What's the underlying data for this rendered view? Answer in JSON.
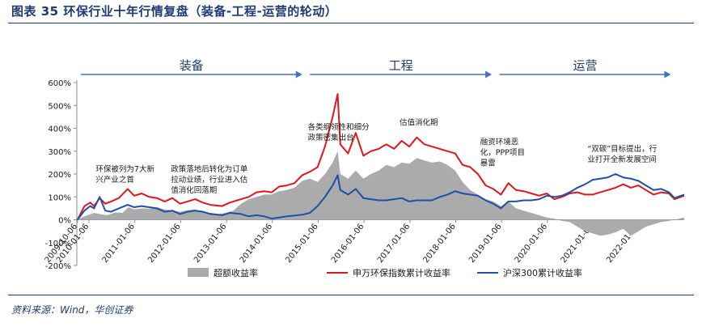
{
  "title": "图表 35   环保行业十年行情复盘（装备-工程-运营的轮动）",
  "source": "资料来源：Wind，华创证券",
  "colors": {
    "excess": "#ababab",
    "index": "#e0161d",
    "hs300": "#1f4fa8",
    "phase_arrow": "#4472c4",
    "phase_text": "#1f3b73",
    "text": "#1a1a1a",
    "axis": "#8c8c8c"
  },
  "phases": [
    {
      "label": "装备",
      "start": "2009-11-01",
      "end": "2014-09-01"
    },
    {
      "label": "工程",
      "start": "2014-11-01",
      "end": "2018-10-20"
    },
    {
      "label": "运营",
      "start": "2018-12-20",
      "end": "2022-09-15"
    }
  ],
  "annotations": [
    {
      "lines": [
        "环保被列为7大新",
        "兴产业之首"
      ],
      "date": "2010-03-01",
      "y": 210
    },
    {
      "lines": [
        "政策落地后转化为订单",
        "拉动业绩，行业进入估",
        "值消化回落期"
      ],
      "date": "2011-10-20",
      "y": 210
    },
    {
      "lines": [
        "各类纲领性和细分",
        "政策密集出台"
      ],
      "date": "2014-10-15",
      "y": 395
    },
    {
      "lines": [
        "估值消化期"
      ],
      "date": "2016-10-15",
      "y": 415
    },
    {
      "lines": [
        "融资环境恶",
        "化，PPP项目",
        "暴雷"
      ],
      "date": "2018-07-20",
      "y": 330
    },
    {
      "lines": [
        "“双碳”目标提出，行",
        "业打开全新发展空间"
      ],
      "date": "2020-11-20",
      "y": 300
    }
  ],
  "chart_data": {
    "type": "line",
    "title": "",
    "xlabel": "",
    "ylabel": "",
    "ylim": [
      -200,
      600
    ],
    "ytick_step": 100,
    "yticks_format": "percent",
    "xlim": [
      "2009-10-01",
      "2022-12-31"
    ],
    "xtick_labels": [
      "2009-10-06",
      "2010-01-06",
      "2011-01-06",
      "2012-01-06",
      "2013-01-06",
      "2014-01-06",
      "2015-01-06",
      "2016-01-06",
      "2017-01-06",
      "2018-01-06",
      "2019-01-06",
      "2020-01-06",
      "2021-01-06",
      "2022-01-06"
    ],
    "legend_position": "bottom",
    "series": [
      {
        "name": "超额收益率",
        "style": "area",
        "points": [
          [
            "2009-10-06",
            0
          ],
          [
            "2009-12-01",
            15
          ],
          [
            "2010-02-15",
            30
          ],
          [
            "2010-04-01",
            25
          ],
          [
            "2010-06-01",
            20
          ],
          [
            "2010-08-01",
            32
          ],
          [
            "2010-10-01",
            30
          ],
          [
            "2010-11-15",
            55
          ],
          [
            "2011-01-01",
            45
          ],
          [
            "2011-03-01",
            50
          ],
          [
            "2011-05-01",
            48
          ],
          [
            "2011-07-01",
            55
          ],
          [
            "2011-09-01",
            45
          ],
          [
            "2011-11-01",
            40
          ],
          [
            "2012-01-01",
            35
          ],
          [
            "2012-03-01",
            42
          ],
          [
            "2012-05-01",
            45
          ],
          [
            "2012-07-01",
            35
          ],
          [
            "2012-09-01",
            30
          ],
          [
            "2012-11-01",
            25
          ],
          [
            "2013-01-01",
            30
          ],
          [
            "2013-03-01",
            40
          ],
          [
            "2013-05-01",
            70
          ],
          [
            "2013-07-01",
            90
          ],
          [
            "2013-09-01",
            100
          ],
          [
            "2013-11-01",
            110
          ],
          [
            "2014-01-01",
            110
          ],
          [
            "2014-03-01",
            125
          ],
          [
            "2014-05-01",
            130
          ],
          [
            "2014-07-01",
            140
          ],
          [
            "2014-09-01",
            170
          ],
          [
            "2014-11-01",
            180
          ],
          [
            "2015-01-01",
            165
          ],
          [
            "2015-03-01",
            200
          ],
          [
            "2015-05-01",
            250
          ],
          [
            "2015-06-10",
            300
          ],
          [
            "2015-07-01",
            200
          ],
          [
            "2015-09-01",
            180
          ],
          [
            "2015-11-01",
            215
          ],
          [
            "2016-01-01",
            180
          ],
          [
            "2016-03-01",
            200
          ],
          [
            "2016-05-01",
            215
          ],
          [
            "2016-07-01",
            240
          ],
          [
            "2016-09-01",
            230
          ],
          [
            "2016-11-01",
            250
          ],
          [
            "2017-01-01",
            245
          ],
          [
            "2017-03-01",
            270
          ],
          [
            "2017-05-01",
            260
          ],
          [
            "2017-07-01",
            250
          ],
          [
            "2017-09-01",
            255
          ],
          [
            "2017-11-01",
            240
          ],
          [
            "2018-01-01",
            215
          ],
          [
            "2018-03-01",
            165
          ],
          [
            "2018-05-01",
            130
          ],
          [
            "2018-07-01",
            110
          ],
          [
            "2018-09-01",
            90
          ],
          [
            "2018-11-01",
            80
          ],
          [
            "2019-01-01",
            60
          ],
          [
            "2019-03-01",
            80
          ],
          [
            "2019-05-01",
            50
          ],
          [
            "2019-07-01",
            40
          ],
          [
            "2019-09-01",
            30
          ],
          [
            "2019-11-01",
            20
          ],
          [
            "2020-01-01",
            10
          ],
          [
            "2020-03-01",
            5
          ],
          [
            "2020-05-01",
            -5
          ],
          [
            "2020-07-01",
            -10
          ],
          [
            "2020-09-01",
            -30
          ],
          [
            "2020-11-01",
            -50
          ],
          [
            "2021-01-01",
            -60
          ],
          [
            "2021-03-01",
            -70
          ],
          [
            "2021-05-01",
            -65
          ],
          [
            "2021-07-01",
            -55
          ],
          [
            "2021-09-01",
            -40
          ],
          [
            "2021-11-01",
            -70
          ],
          [
            "2022-01-01",
            -50
          ],
          [
            "2022-03-01",
            -30
          ],
          [
            "2022-05-01",
            -20
          ],
          [
            "2022-07-01",
            -10
          ],
          [
            "2022-09-01",
            -5
          ],
          [
            "2022-12-31",
            10
          ]
        ]
      },
      {
        "name": "申万环保指数累计收益率",
        "style": "line",
        "points": [
          [
            "2009-10-06",
            0
          ],
          [
            "2009-12-01",
            60
          ],
          [
            "2010-01-15",
            75
          ],
          [
            "2010-02-15",
            60
          ],
          [
            "2010-04-01",
            95
          ],
          [
            "2010-05-15",
            70
          ],
          [
            "2010-07-01",
            80
          ],
          [
            "2010-09-01",
            95
          ],
          [
            "2010-11-10",
            135
          ],
          [
            "2011-01-01",
            105
          ],
          [
            "2011-03-01",
            115
          ],
          [
            "2011-05-01",
            100
          ],
          [
            "2011-07-01",
            95
          ],
          [
            "2011-09-01",
            80
          ],
          [
            "2011-11-01",
            95
          ],
          [
            "2012-01-01",
            70
          ],
          [
            "2012-03-01",
            80
          ],
          [
            "2012-05-01",
            90
          ],
          [
            "2012-07-01",
            75
          ],
          [
            "2012-09-01",
            65
          ],
          [
            "2012-12-01",
            60
          ],
          [
            "2013-02-01",
            75
          ],
          [
            "2013-05-01",
            90
          ],
          [
            "2013-07-01",
            100
          ],
          [
            "2013-09-01",
            120
          ],
          [
            "2013-11-01",
            125
          ],
          [
            "2014-01-01",
            120
          ],
          [
            "2014-03-01",
            145
          ],
          [
            "2014-05-01",
            150
          ],
          [
            "2014-07-01",
            160
          ],
          [
            "2014-09-01",
            195
          ],
          [
            "2014-11-01",
            210
          ],
          [
            "2015-01-01",
            230
          ],
          [
            "2015-03-01",
            320
          ],
          [
            "2015-05-01",
            450
          ],
          [
            "2015-06-10",
            550
          ],
          [
            "2015-07-01",
            330
          ],
          [
            "2015-09-01",
            290
          ],
          [
            "2015-11-01",
            380
          ],
          [
            "2016-01-01",
            280
          ],
          [
            "2016-03-01",
            300
          ],
          [
            "2016-05-01",
            310
          ],
          [
            "2016-07-01",
            330
          ],
          [
            "2016-09-01",
            310
          ],
          [
            "2016-11-01",
            345
          ],
          [
            "2017-01-01",
            320
          ],
          [
            "2017-03-01",
            360
          ],
          [
            "2017-05-01",
            330
          ],
          [
            "2017-07-01",
            320
          ],
          [
            "2017-09-01",
            310
          ],
          [
            "2017-11-01",
            300
          ],
          [
            "2018-01-01",
            290
          ],
          [
            "2018-03-01",
            240
          ],
          [
            "2018-05-01",
            230
          ],
          [
            "2018-07-01",
            200
          ],
          [
            "2018-09-01",
            150
          ],
          [
            "2018-11-01",
            135
          ],
          [
            "2019-01-01",
            110
          ],
          [
            "2019-03-01",
            160
          ],
          [
            "2019-05-01",
            130
          ],
          [
            "2019-07-01",
            125
          ],
          [
            "2019-09-01",
            115
          ],
          [
            "2019-11-01",
            105
          ],
          [
            "2020-01-01",
            115
          ],
          [
            "2020-03-01",
            90
          ],
          [
            "2020-05-01",
            100
          ],
          [
            "2020-07-01",
            115
          ],
          [
            "2020-09-01",
            120
          ],
          [
            "2020-11-01",
            110
          ],
          [
            "2021-01-01",
            110
          ],
          [
            "2021-03-01",
            120
          ],
          [
            "2021-05-01",
            130
          ],
          [
            "2021-07-01",
            140
          ],
          [
            "2021-09-01",
            155
          ],
          [
            "2021-11-01",
            140
          ],
          [
            "2022-01-01",
            150
          ],
          [
            "2022-03-01",
            130
          ],
          [
            "2022-05-01",
            110
          ],
          [
            "2022-07-01",
            120
          ],
          [
            "2022-09-01",
            115
          ],
          [
            "2022-10-15",
            90
          ],
          [
            "2022-12-31",
            105
          ]
        ]
      },
      {
        "name": "沪深300累计收益率",
        "style": "line",
        "points": [
          [
            "2009-10-06",
            0
          ],
          [
            "2009-12-01",
            40
          ],
          [
            "2010-01-15",
            60
          ],
          [
            "2010-02-15",
            50
          ],
          [
            "2010-04-01",
            100
          ],
          [
            "2010-05-15",
            40
          ],
          [
            "2010-07-01",
            35
          ],
          [
            "2010-09-01",
            50
          ],
          [
            "2010-11-10",
            65
          ],
          [
            "2011-01-01",
            55
          ],
          [
            "2011-03-01",
            60
          ],
          [
            "2011-05-01",
            55
          ],
          [
            "2011-07-01",
            50
          ],
          [
            "2011-09-01",
            35
          ],
          [
            "2011-11-01",
            40
          ],
          [
            "2012-01-01",
            25
          ],
          [
            "2012-03-01",
            35
          ],
          [
            "2012-05-01",
            40
          ],
          [
            "2012-07-01",
            35
          ],
          [
            "2012-09-01",
            25
          ],
          [
            "2012-12-01",
            20
          ],
          [
            "2013-02-01",
            30
          ],
          [
            "2013-05-01",
            25
          ],
          [
            "2013-07-01",
            15
          ],
          [
            "2013-09-01",
            20
          ],
          [
            "2013-11-01",
            15
          ],
          [
            "2014-01-01",
            5
          ],
          [
            "2014-03-01",
            10
          ],
          [
            "2014-05-01",
            15
          ],
          [
            "2014-07-01",
            18
          ],
          [
            "2014-09-01",
            22
          ],
          [
            "2014-11-01",
            30
          ],
          [
            "2015-01-01",
            60
          ],
          [
            "2015-03-01",
            100
          ],
          [
            "2015-05-01",
            150
          ],
          [
            "2015-06-10",
            195
          ],
          [
            "2015-07-01",
            130
          ],
          [
            "2015-09-01",
            110
          ],
          [
            "2015-11-01",
            135
          ],
          [
            "2016-01-01",
            95
          ],
          [
            "2016-03-01",
            90
          ],
          [
            "2016-05-01",
            85
          ],
          [
            "2016-07-01",
            85
          ],
          [
            "2016-09-01",
            90
          ],
          [
            "2016-11-01",
            95
          ],
          [
            "2017-01-01",
            80
          ],
          [
            "2017-03-01",
            85
          ],
          [
            "2017-05-01",
            85
          ],
          [
            "2017-07-01",
            85
          ],
          [
            "2017-09-01",
            100
          ],
          [
            "2017-11-01",
            110
          ],
          [
            "2018-01-01",
            125
          ],
          [
            "2018-03-01",
            115
          ],
          [
            "2018-05-01",
            110
          ],
          [
            "2018-07-01",
            105
          ],
          [
            "2018-09-01",
            85
          ],
          [
            "2018-11-01",
            70
          ],
          [
            "2019-01-01",
            50
          ],
          [
            "2019-03-01",
            80
          ],
          [
            "2019-05-01",
            80
          ],
          [
            "2019-07-01",
            85
          ],
          [
            "2019-09-01",
            85
          ],
          [
            "2019-11-01",
            90
          ],
          [
            "2020-01-01",
            105
          ],
          [
            "2020-03-01",
            100
          ],
          [
            "2020-05-01",
            105
          ],
          [
            "2020-07-01",
            120
          ],
          [
            "2020-09-01",
            140
          ],
          [
            "2020-11-01",
            155
          ],
          [
            "2021-01-01",
            175
          ],
          [
            "2021-03-01",
            180
          ],
          [
            "2021-05-01",
            185
          ],
          [
            "2021-07-01",
            200
          ],
          [
            "2021-09-01",
            185
          ],
          [
            "2021-11-01",
            180
          ],
          [
            "2022-01-01",
            170
          ],
          [
            "2022-03-01",
            150
          ],
          [
            "2022-05-01",
            130
          ],
          [
            "2022-07-01",
            135
          ],
          [
            "2022-09-01",
            120
          ],
          [
            "2022-10-15",
            95
          ],
          [
            "2022-12-31",
            110
          ]
        ]
      }
    ]
  }
}
